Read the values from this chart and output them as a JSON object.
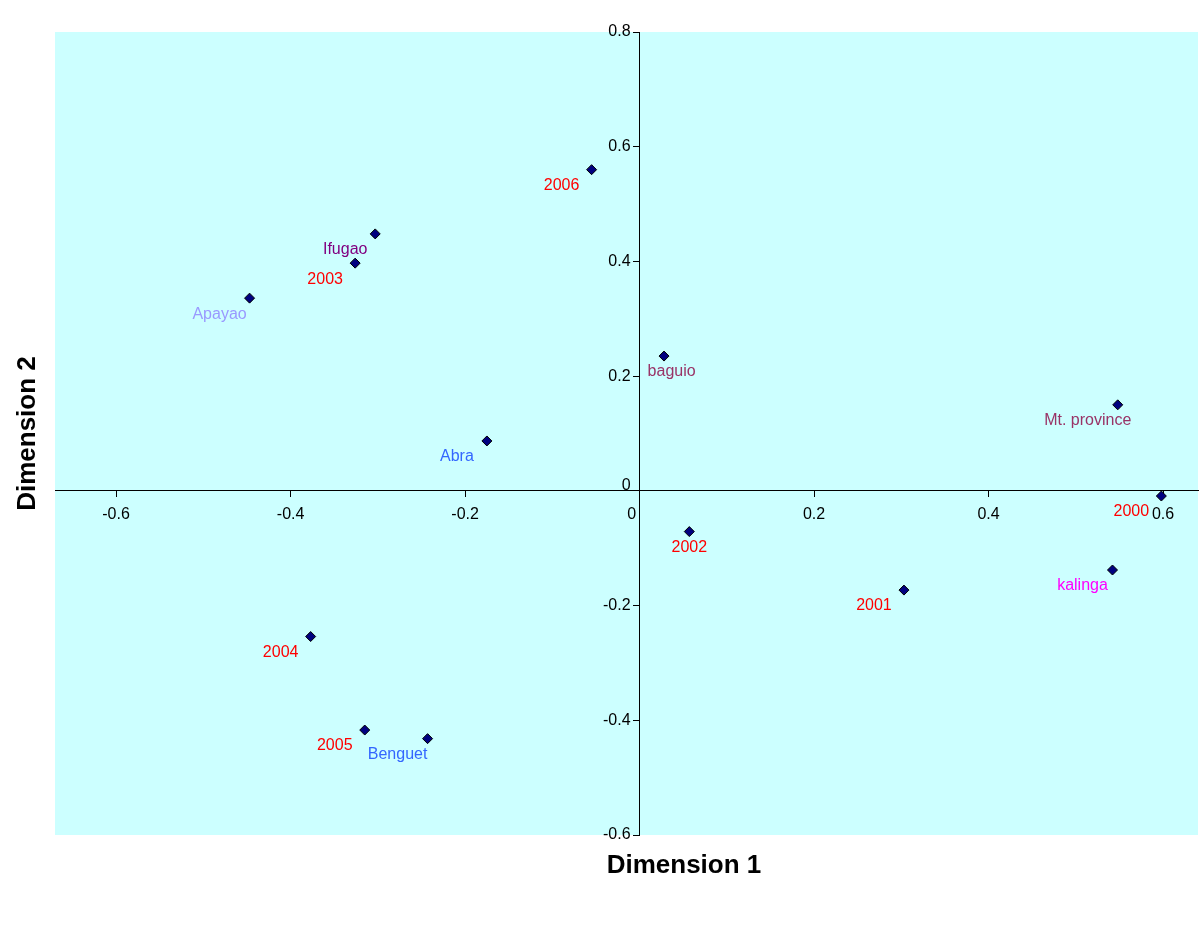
{
  "chart_data": {
    "type": "scatter",
    "xlabel": "Dimension 1",
    "ylabel": "Dimension 2",
    "xlim": [
      -0.67,
      0.64
    ],
    "ylim": [
      -0.6,
      0.8
    ],
    "xticks": [
      -0.6,
      -0.4,
      -0.2,
      0,
      0.2,
      0.4,
      0.6
    ],
    "yticks": [
      -0.6,
      -0.4,
      -0.2,
      0,
      0.2,
      0.4,
      0.6,
      0.8
    ],
    "grid": false,
    "legend": false,
    "marker": "diamond",
    "series": [
      {
        "color": "#000080",
        "x": [
          -0.055,
          -0.326,
          0.598,
          0.057,
          0.303,
          -0.377,
          -0.315
        ],
        "values": [
          0.56,
          0.397,
          -0.009,
          -0.071,
          -0.173,
          -0.254,
          -0.417
        ]
      },
      {
        "color": "#000080",
        "x": [
          -0.303,
          -0.447,
          0.028,
          -0.175,
          0.548,
          0.542,
          -0.243
        ],
        "values": [
          0.448,
          0.336,
          0.235,
          0.087,
          0.15,
          -0.138,
          -0.432
        ]
      }
    ],
    "annotations": [
      {
        "text": "2006",
        "x": -0.055,
        "y": 0.56
      },
      {
        "text": "2003",
        "x": -0.326,
        "y": 0.397
      },
      {
        "text": "2000",
        "x": 0.598,
        "y": -0.009
      },
      {
        "text": "2002",
        "x": 0.057,
        "y": -0.071
      },
      {
        "text": "2001",
        "x": 0.303,
        "y": -0.173
      },
      {
        "text": "2004",
        "x": -0.377,
        "y": -0.254
      },
      {
        "text": "2005",
        "x": -0.315,
        "y": -0.417
      },
      {
        "text": "Ifugao",
        "x": -0.303,
        "y": 0.448
      },
      {
        "text": "Apayao",
        "x": -0.447,
        "y": 0.336
      },
      {
        "text": "baguio",
        "x": 0.028,
        "y": 0.235
      },
      {
        "text": "Abra",
        "x": -0.175,
        "y": 0.087
      },
      {
        "text": "Mt. province",
        "x": 0.548,
        "y": 0.15
      },
      {
        "text": "kalinga",
        "x": 0.542,
        "y": -0.138
      },
      {
        "text": "Benguet",
        "x": -0.243,
        "y": -0.432
      }
    ]
  }
}
